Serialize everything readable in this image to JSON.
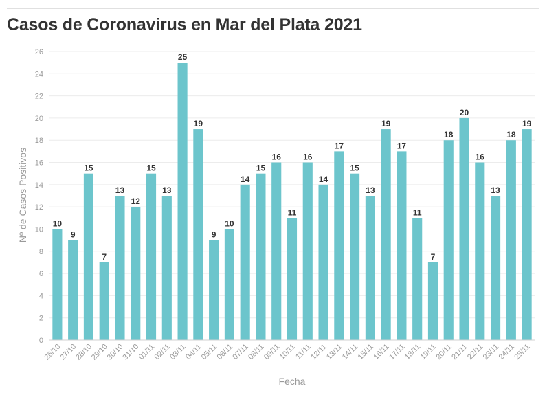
{
  "chart_data": {
    "type": "bar",
    "title": "Casos de Coronavirus en Mar del Plata 2021",
    "xlabel": "Fecha",
    "ylabel": "Nº de Casos Positivos",
    "ylim": [
      0,
      26
    ],
    "yticks": [
      0,
      2,
      4,
      6,
      8,
      10,
      12,
      14,
      16,
      18,
      20,
      22,
      24,
      26
    ],
    "grid": true,
    "bar_color": "#6cc5cc",
    "categories": [
      "26/10",
      "27/10",
      "28/10",
      "29/10",
      "30/10",
      "31/10",
      "01/11",
      "02/11",
      "03/11",
      "04/11",
      "05/11",
      "06/11",
      "07/11",
      "08/11",
      "09/11",
      "10/11",
      "11/11",
      "12/11",
      "13/11",
      "14/11",
      "15/11",
      "16/11",
      "17/11",
      "18/11",
      "19/11",
      "20/11",
      "21/11",
      "22/11",
      "23/11",
      "24/11",
      "25/11"
    ],
    "values": [
      10,
      9,
      15,
      7,
      13,
      12,
      15,
      13,
      25,
      19,
      9,
      10,
      14,
      15,
      16,
      11,
      16,
      14,
      17,
      15,
      13,
      19,
      17,
      11,
      7,
      18,
      20,
      16,
      13,
      18,
      19
    ]
  }
}
